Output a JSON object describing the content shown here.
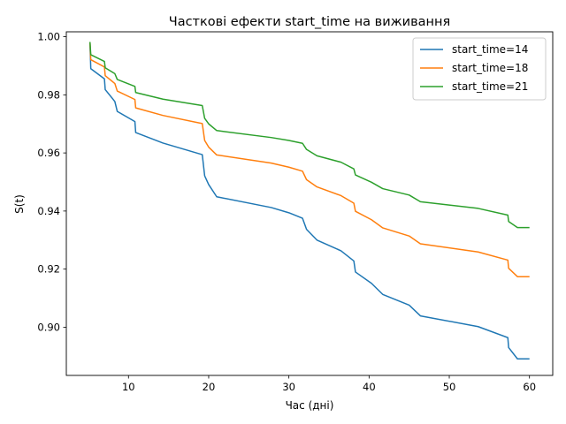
{
  "chart_data": {
    "type": "line",
    "title": "Часткові ефекти start_time на виживання",
    "xlabel": "Час (дні)",
    "ylabel": "S(t)",
    "xlim": [
      2.25,
      62.9
    ],
    "ylim": [
      0.8834,
      1.0017
    ],
    "x_ticks": [
      10,
      20,
      30,
      40,
      50,
      60
    ],
    "y_ticks": [
      0.9,
      0.92,
      0.94,
      0.96,
      0.98,
      1.0
    ],
    "y_tick_labels": [
      "0.90",
      "0.92",
      "0.94",
      "0.96",
      "0.98",
      "1.00"
    ],
    "grid": false,
    "legend_position": "top-right",
    "series": [
      {
        "name": "start_time=14",
        "color": "#1f77b4",
        "points": [
          [
            5.2,
            0.9977
          ],
          [
            5.3,
            0.989
          ],
          [
            7,
            0.9855
          ],
          [
            7.1,
            0.9818
          ],
          [
            8.3,
            0.9777
          ],
          [
            8.6,
            0.9743
          ],
          [
            10.8,
            0.9708
          ],
          [
            10.9,
            0.967
          ],
          [
            14.3,
            0.9634
          ],
          [
            19.2,
            0.9594
          ],
          [
            19.5,
            0.9521
          ],
          [
            20,
            0.9491
          ],
          [
            21,
            0.9449
          ],
          [
            27.8,
            0.9412
          ],
          [
            30,
            0.9394
          ],
          [
            31.7,
            0.9375
          ],
          [
            32.2,
            0.9337
          ],
          [
            33.5,
            0.93
          ],
          [
            36.5,
            0.9263
          ],
          [
            38.1,
            0.9228
          ],
          [
            38.3,
            0.919
          ],
          [
            40.3,
            0.9151
          ],
          [
            41.7,
            0.9113
          ],
          [
            45,
            0.9076
          ],
          [
            46.4,
            0.9039
          ],
          [
            53.6,
            0.9002
          ],
          [
            57.3,
            0.8964
          ],
          [
            57.4,
            0.893
          ],
          [
            58.5,
            0.8891
          ],
          [
            60,
            0.8891
          ]
        ]
      },
      {
        "name": "start_time=18",
        "color": "#ff7f0e",
        "points": [
          [
            5.2,
            0.998
          ],
          [
            5.3,
            0.9921
          ],
          [
            7,
            0.9896
          ],
          [
            7.1,
            0.9866
          ],
          [
            8.3,
            0.9839
          ],
          [
            8.6,
            0.9813
          ],
          [
            10.8,
            0.9784
          ],
          [
            10.9,
            0.9755
          ],
          [
            14.3,
            0.9729
          ],
          [
            19.2,
            0.9701
          ],
          [
            19.5,
            0.9643
          ],
          [
            20,
            0.962
          ],
          [
            21,
            0.9593
          ],
          [
            27.8,
            0.9565
          ],
          [
            30,
            0.9551
          ],
          [
            31.7,
            0.9537
          ],
          [
            32.2,
            0.9508
          ],
          [
            33.5,
            0.9483
          ],
          [
            36.5,
            0.9453
          ],
          [
            38.1,
            0.9427
          ],
          [
            38.3,
            0.9399
          ],
          [
            40.3,
            0.937
          ],
          [
            41.7,
            0.9342
          ],
          [
            45,
            0.9314
          ],
          [
            46.4,
            0.9287
          ],
          [
            53.6,
            0.9259
          ],
          [
            57.3,
            0.9231
          ],
          [
            57.4,
            0.9203
          ],
          [
            58.5,
            0.9174
          ],
          [
            60,
            0.9174
          ]
        ]
      },
      {
        "name": "start_time=21",
        "color": "#2ca02c",
        "points": [
          [
            5.2,
            0.9982
          ],
          [
            5.3,
            0.9938
          ],
          [
            7,
            0.9915
          ],
          [
            7.1,
            0.9893
          ],
          [
            8.3,
            0.9873
          ],
          [
            8.6,
            0.9853
          ],
          [
            10.8,
            0.9829
          ],
          [
            10.9,
            0.9808
          ],
          [
            14.3,
            0.9785
          ],
          [
            19.2,
            0.9763
          ],
          [
            19.5,
            0.9719
          ],
          [
            20,
            0.97
          ],
          [
            21,
            0.9677
          ],
          [
            27.8,
            0.9653
          ],
          [
            30,
            0.9643
          ],
          [
            31.7,
            0.9633
          ],
          [
            32.2,
            0.9612
          ],
          [
            33.5,
            0.959
          ],
          [
            36.5,
            0.9568
          ],
          [
            38.1,
            0.9545
          ],
          [
            38.3,
            0.9524
          ],
          [
            40.3,
            0.9499
          ],
          [
            41.7,
            0.9477
          ],
          [
            45,
            0.9455
          ],
          [
            46.4,
            0.9432
          ],
          [
            53.6,
            0.9409
          ],
          [
            57.3,
            0.9386
          ],
          [
            57.4,
            0.9364
          ],
          [
            58.5,
            0.9343
          ],
          [
            60,
            0.9343
          ]
        ]
      }
    ]
  }
}
